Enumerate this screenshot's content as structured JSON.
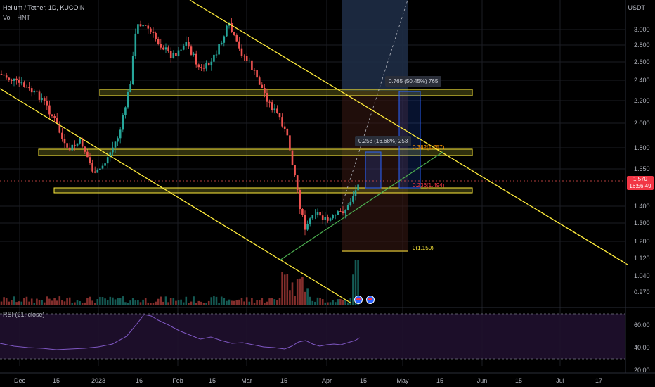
{
  "header": {
    "symbol": "Helium / Tether, 1D, KUCOIN",
    "volume_label": "Vol · HNT"
  },
  "rsi": {
    "label": "RSI (21, close)",
    "ticks": [
      "60.00",
      "40.00",
      "20.00"
    ]
  },
  "price_axis": {
    "unit": "USDT",
    "ticks": [
      "3.000",
      "2.800",
      "2.600",
      "2.400",
      "2.200",
      "2.000",
      "1.800",
      "1.650",
      "1.400",
      "1.300",
      "1.200",
      "1.120",
      "1.040",
      "0.970"
    ],
    "last_price": "1.570",
    "countdown": "16:56:49"
  },
  "time_axis": {
    "ticks": [
      "Dec",
      "15",
      "2023",
      "16",
      "Feb",
      "15",
      "Mar",
      "15",
      "Apr",
      "15",
      "May",
      "15",
      "Jun",
      "15",
      "Jul",
      "17"
    ]
  },
  "measurements": [
    {
      "text": "0.765 (50.45%) 765"
    },
    {
      "text": "0.253 (16.68%) 253"
    }
  ],
  "fib_labels": [
    {
      "text": "0.382(1.757)",
      "color": "#ff9800"
    },
    {
      "text": "0.236(1.494)",
      "color": "#f23645"
    },
    {
      "text": "0(1.150)",
      "color": "#ffeb3b"
    }
  ],
  "colors": {
    "bull": "#26a69a",
    "bear": "#ef5350",
    "trendline": "#ffeb3b",
    "zone_border": "#ffeb3b",
    "support_line": "#4caf50",
    "rsi_line": "#7e57c2",
    "accent": "#2962ff"
  },
  "icons": [
    "us-flag-icon",
    "us-flag-icon"
  ]
}
